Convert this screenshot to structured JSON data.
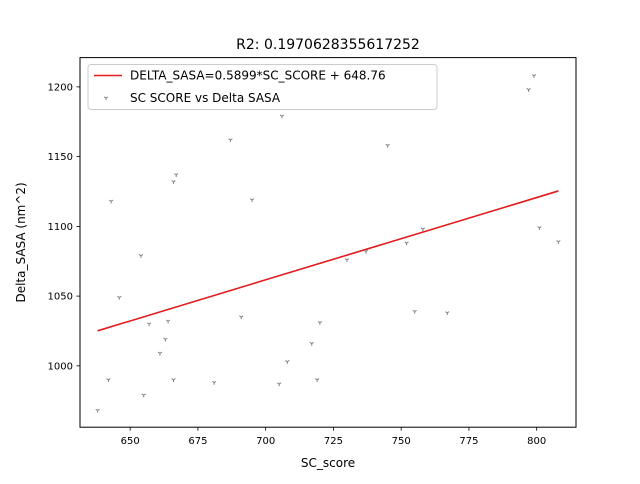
{
  "chart_data": {
    "type": "scatter",
    "title": "R2: 0.1970628355617252",
    "xlabel": "SC_score",
    "ylabel": "Delta_SASA (nm^2)",
    "xlim": [
      631.5,
      814.5
    ],
    "ylim": [
      956,
      1221
    ],
    "xticks": [
      650,
      675,
      700,
      725,
      750,
      775,
      800
    ],
    "yticks": [
      1000,
      1050,
      1100,
      1150,
      1200
    ],
    "grid": false,
    "legend_position": "upper left",
    "series": [
      {
        "name": "SC SCORE vs Delta SASA",
        "kind": "scatter",
        "color": "#7f7f7f",
        "points": [
          [
            638,
            968
          ],
          [
            642,
            990
          ],
          [
            643,
            1118
          ],
          [
            646,
            1049
          ],
          [
            654,
            1079
          ],
          [
            655,
            979
          ],
          [
            657,
            1030
          ],
          [
            661,
            1009
          ],
          [
            663,
            1019
          ],
          [
            664,
            1032
          ],
          [
            666,
            1132
          ],
          [
            666,
            990
          ],
          [
            667,
            1137
          ],
          [
            681,
            988
          ],
          [
            687,
            1162
          ],
          [
            691,
            1035
          ],
          [
            695,
            1119
          ],
          [
            705,
            987
          ],
          [
            706,
            1179
          ],
          [
            708,
            1003
          ],
          [
            717,
            1016
          ],
          [
            719,
            990
          ],
          [
            720,
            1031
          ],
          [
            730,
            1076
          ],
          [
            737,
            1082
          ],
          [
            745,
            1158
          ],
          [
            752,
            1088
          ],
          [
            755,
            1039
          ],
          [
            758,
            1098
          ],
          [
            767,
            1038
          ],
          [
            797,
            1198
          ],
          [
            799,
            1208
          ],
          [
            801,
            1099
          ],
          [
            808,
            1089
          ]
        ]
      },
      {
        "name": "DELTA_SASA=0.5899*SC_SCORE + 648.76",
        "kind": "line",
        "color": "#e41a1c",
        "points": [
          [
            638,
            1025.1
          ],
          [
            808,
            1125.4
          ]
        ]
      }
    ]
  }
}
